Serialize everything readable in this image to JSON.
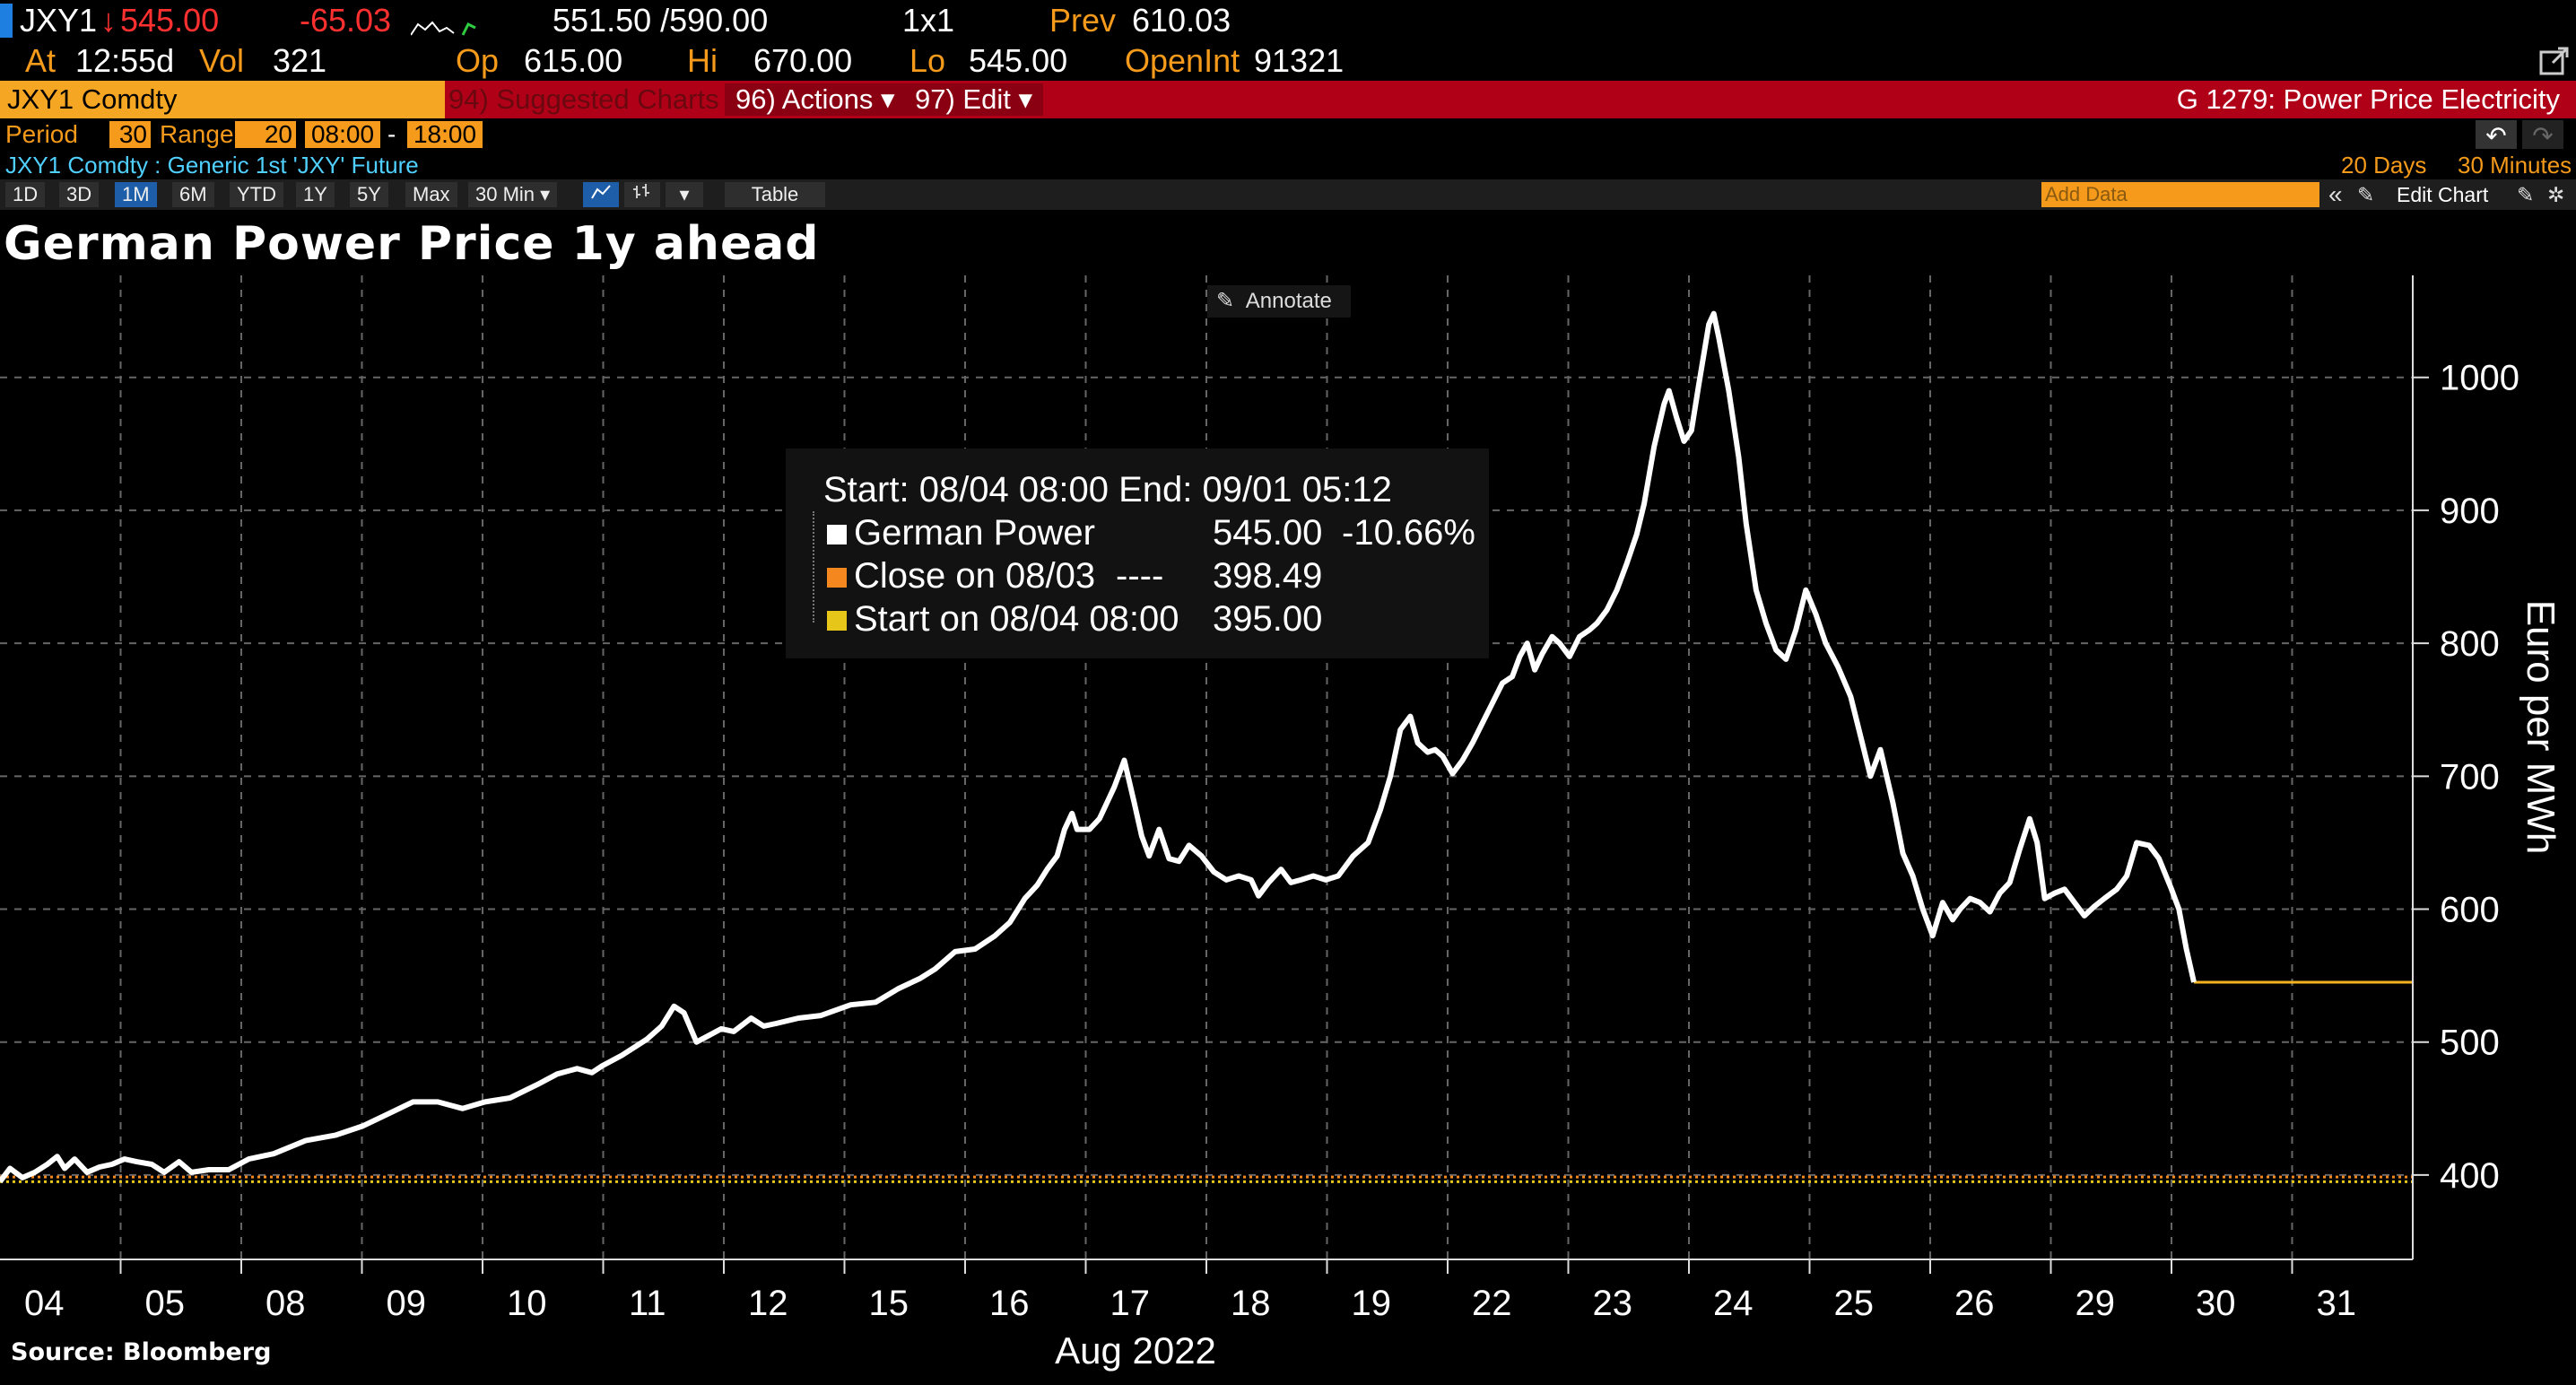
{
  "header": {
    "ticker": "JXY1",
    "last": "545.00",
    "change": "-65.03",
    "bid_ask": "551.50 /590.00",
    "size": "1x1",
    "prev_label": "Prev",
    "prev": "610.03",
    "at_label": "At",
    "at_time": "12:55d",
    "vol_label": "Vol",
    "vol": "321",
    "op_label": "Op",
    "op": "615.00",
    "hi_label": "Hi",
    "hi": "670.00",
    "lo_label": "Lo",
    "lo": "545.00",
    "oi_label": "OpenInt",
    "oi": "91321"
  },
  "toolbar": {
    "security": "JXY1 Comdty",
    "suggested": "94) Suggested Charts",
    "actions": "96) Actions ▾",
    "edit": "97) Edit ▾",
    "function_title": "G 1279: Power Price Electricity",
    "period_label": "Period",
    "period_value": "30",
    "range_label": "Range",
    "range_value": "20",
    "range_start": "08:00",
    "range_sep": "-",
    "range_end": "18:00",
    "description": "JXY1 Comdty : Generic 1st 'JXY' Future",
    "days_info": "20 Days",
    "minutes_info": "30 Minutes",
    "timeframes": [
      "1D",
      "3D",
      "1M",
      "6M",
      "YTD",
      "1Y",
      "5Y",
      "Max"
    ],
    "interval": "30 Min ▾",
    "table_label": "Table",
    "add_data_placeholder": "Add Data",
    "edit_chart": "Edit Chart"
  },
  "annotate_label": "Annotate",
  "legend": {
    "range_text": "Start: 08/04 08:00 End: 09/01 05:12",
    "items": [
      {
        "label": "German Power",
        "value": "545.00",
        "pct": "-10.66%",
        "color": "#ffffff"
      },
      {
        "label": "Close on 08/03",
        "dashes": "----",
        "value": "398.49",
        "color": "#f5871f"
      },
      {
        "label": "Start on 08/04 08:00",
        "value": "395.00",
        "color": "#e6c619"
      }
    ]
  },
  "source": "Source: Bloomberg",
  "chart_data": {
    "type": "line",
    "title": "German Power Price 1y ahead",
    "xlabel": "Aug 2022",
    "ylabel": "Euro per MWh",
    "ylim": [
      350,
      1070
    ],
    "yticks": [
      400,
      500,
      600,
      700,
      800,
      900,
      1000
    ],
    "x_categories": [
      "04",
      "05",
      "08",
      "09",
      "10",
      "11",
      "12",
      "15",
      "16",
      "17",
      "18",
      "19",
      "22",
      "23",
      "24",
      "25",
      "26",
      "29",
      "30",
      "31"
    ],
    "grid": true,
    "series": [
      {
        "name": "German Power",
        "color": "#ffffff",
        "values": [
          [
            0.0,
            395
          ],
          [
            0.4,
            405
          ],
          [
            0.9,
            398
          ],
          [
            1.4,
            402
          ],
          [
            1.9,
            408
          ],
          [
            2.3,
            414
          ],
          [
            2.6,
            405
          ],
          [
            3.0,
            412
          ],
          [
            3.5,
            402
          ],
          [
            4.0,
            406
          ],
          [
            4.5,
            408
          ],
          [
            5.0,
            412
          ],
          [
            5.5,
            410
          ],
          [
            6.1,
            408
          ],
          [
            6.6,
            402
          ],
          [
            7.2,
            410
          ],
          [
            7.7,
            402
          ],
          [
            8.4,
            404
          ],
          [
            9.2,
            404
          ],
          [
            10.0,
            412
          ],
          [
            11.0,
            416
          ],
          [
            12.3,
            426
          ],
          [
            13.5,
            430
          ],
          [
            14.6,
            437
          ],
          [
            15.5,
            445
          ],
          [
            16.6,
            455
          ],
          [
            17.6,
            455
          ],
          [
            18.6,
            450
          ],
          [
            19.5,
            455
          ],
          [
            20.5,
            458
          ],
          [
            21.6,
            468
          ],
          [
            22.4,
            476
          ],
          [
            23.2,
            480
          ],
          [
            23.8,
            477
          ],
          [
            24.2,
            482
          ],
          [
            25.0,
            490
          ],
          [
            26.0,
            502
          ],
          [
            26.6,
            512
          ],
          [
            27.1,
            527
          ],
          [
            27.5,
            522
          ],
          [
            28.0,
            500
          ],
          [
            28.5,
            505
          ],
          [
            29.0,
            510
          ],
          [
            29.5,
            508
          ],
          [
            30.2,
            518
          ],
          [
            30.7,
            512
          ],
          [
            31.2,
            514
          ],
          [
            32.1,
            518
          ],
          [
            33.0,
            520
          ],
          [
            34.2,
            528
          ],
          [
            35.2,
            530
          ],
          [
            36.1,
            540
          ],
          [
            37.0,
            548
          ],
          [
            37.6,
            555
          ],
          [
            38.4,
            568
          ],
          [
            39.2,
            570
          ],
          [
            40.0,
            580
          ],
          [
            40.6,
            590
          ],
          [
            41.2,
            608
          ],
          [
            41.7,
            618
          ],
          [
            42.1,
            630
          ],
          [
            42.5,
            640
          ],
          [
            42.8,
            660
          ],
          [
            43.1,
            672
          ],
          [
            43.3,
            660
          ],
          [
            43.8,
            660
          ],
          [
            44.2,
            668
          ],
          [
            44.5,
            680
          ],
          [
            44.8,
            692
          ],
          [
            45.2,
            712
          ],
          [
            45.6,
            680
          ],
          [
            45.9,
            655
          ],
          [
            46.2,
            640
          ],
          [
            46.6,
            660
          ],
          [
            47.0,
            638
          ],
          [
            47.4,
            636
          ],
          [
            47.8,
            648
          ],
          [
            48.3,
            640
          ],
          [
            48.8,
            628
          ],
          [
            49.3,
            622
          ],
          [
            49.8,
            625
          ],
          [
            50.3,
            622
          ],
          [
            50.6,
            610
          ],
          [
            51.0,
            620
          ],
          [
            51.5,
            630
          ],
          [
            51.9,
            620
          ],
          [
            52.3,
            622
          ],
          [
            52.8,
            625
          ],
          [
            53.3,
            622
          ],
          [
            53.8,
            625
          ],
          [
            54.4,
            640
          ],
          [
            55.0,
            650
          ],
          [
            55.5,
            675
          ],
          [
            55.9,
            700
          ],
          [
            56.3,
            735
          ],
          [
            56.7,
            745
          ],
          [
            57.0,
            725
          ],
          [
            57.4,
            718
          ],
          [
            57.7,
            720
          ],
          [
            58.0,
            715
          ],
          [
            58.4,
            702
          ],
          [
            58.8,
            712
          ],
          [
            59.2,
            725
          ],
          [
            59.6,
            740
          ],
          [
            60.0,
            755
          ],
          [
            60.4,
            770
          ],
          [
            60.8,
            775
          ],
          [
            61.1,
            790
          ],
          [
            61.4,
            800
          ],
          [
            61.7,
            780
          ],
          [
            62.0,
            792
          ],
          [
            62.4,
            805
          ],
          [
            62.7,
            800
          ],
          [
            63.1,
            790
          ],
          [
            63.5,
            805
          ],
          [
            63.9,
            810
          ],
          [
            64.2,
            815
          ],
          [
            64.6,
            825
          ],
          [
            65.0,
            840
          ],
          [
            65.4,
            860
          ],
          [
            65.8,
            882
          ],
          [
            66.1,
            905
          ],
          [
            66.5,
            948
          ],
          [
            66.9,
            980
          ],
          [
            67.1,
            990
          ],
          [
            67.4,
            970
          ],
          [
            67.7,
            952
          ],
          [
            68.0,
            960
          ],
          [
            68.3,
            995
          ],
          [
            68.7,
            1040
          ],
          [
            68.9,
            1048
          ],
          [
            69.1,
            1030
          ],
          [
            69.5,
            990
          ],
          [
            69.9,
            940
          ],
          [
            70.2,
            890
          ],
          [
            70.6,
            840
          ],
          [
            71.0,
            815
          ],
          [
            71.4,
            795
          ],
          [
            71.8,
            788
          ],
          [
            72.2,
            810
          ],
          [
            72.6,
            840
          ],
          [
            73.0,
            822
          ],
          [
            73.4,
            800
          ],
          [
            73.9,
            782
          ],
          [
            74.4,
            760
          ],
          [
            74.8,
            730
          ],
          [
            75.2,
            700
          ],
          [
            75.6,
            720
          ],
          [
            76.1,
            680
          ],
          [
            76.5,
            642
          ],
          [
            76.9,
            625
          ],
          [
            77.3,
            600
          ],
          [
            77.7,
            580
          ],
          [
            78.1,
            605
          ],
          [
            78.5,
            592
          ],
          [
            78.8,
            600
          ],
          [
            79.2,
            608
          ],
          [
            79.6,
            605
          ],
          [
            80.0,
            598
          ],
          [
            80.4,
            612
          ],
          [
            80.8,
            620
          ],
          [
            81.2,
            645
          ],
          [
            81.6,
            668
          ],
          [
            81.9,
            650
          ],
          [
            82.2,
            608
          ],
          [
            82.6,
            612
          ],
          [
            83.0,
            615
          ],
          [
            83.4,
            605
          ],
          [
            83.8,
            595
          ],
          [
            84.2,
            602
          ],
          [
            84.6,
            608
          ],
          [
            85.1,
            615
          ],
          [
            85.5,
            625
          ],
          [
            85.9,
            650
          ],
          [
            86.4,
            648
          ],
          [
            86.8,
            638
          ],
          [
            87.3,
            615
          ],
          [
            87.6,
            600
          ],
          [
            87.9,
            570
          ],
          [
            88.2,
            545
          ]
        ]
      },
      {
        "name": "Close on 08/03",
        "color": "#f5871f",
        "level": 398.49
      },
      {
        "name": "Start on 08/04 08:00",
        "color": "#e6c619",
        "level": 395.0
      },
      {
        "name": "Last",
        "color": "#f5b21f",
        "from_x": 88.2,
        "level": 545.0
      }
    ],
    "x_domain": [
      0,
      97
    ]
  }
}
